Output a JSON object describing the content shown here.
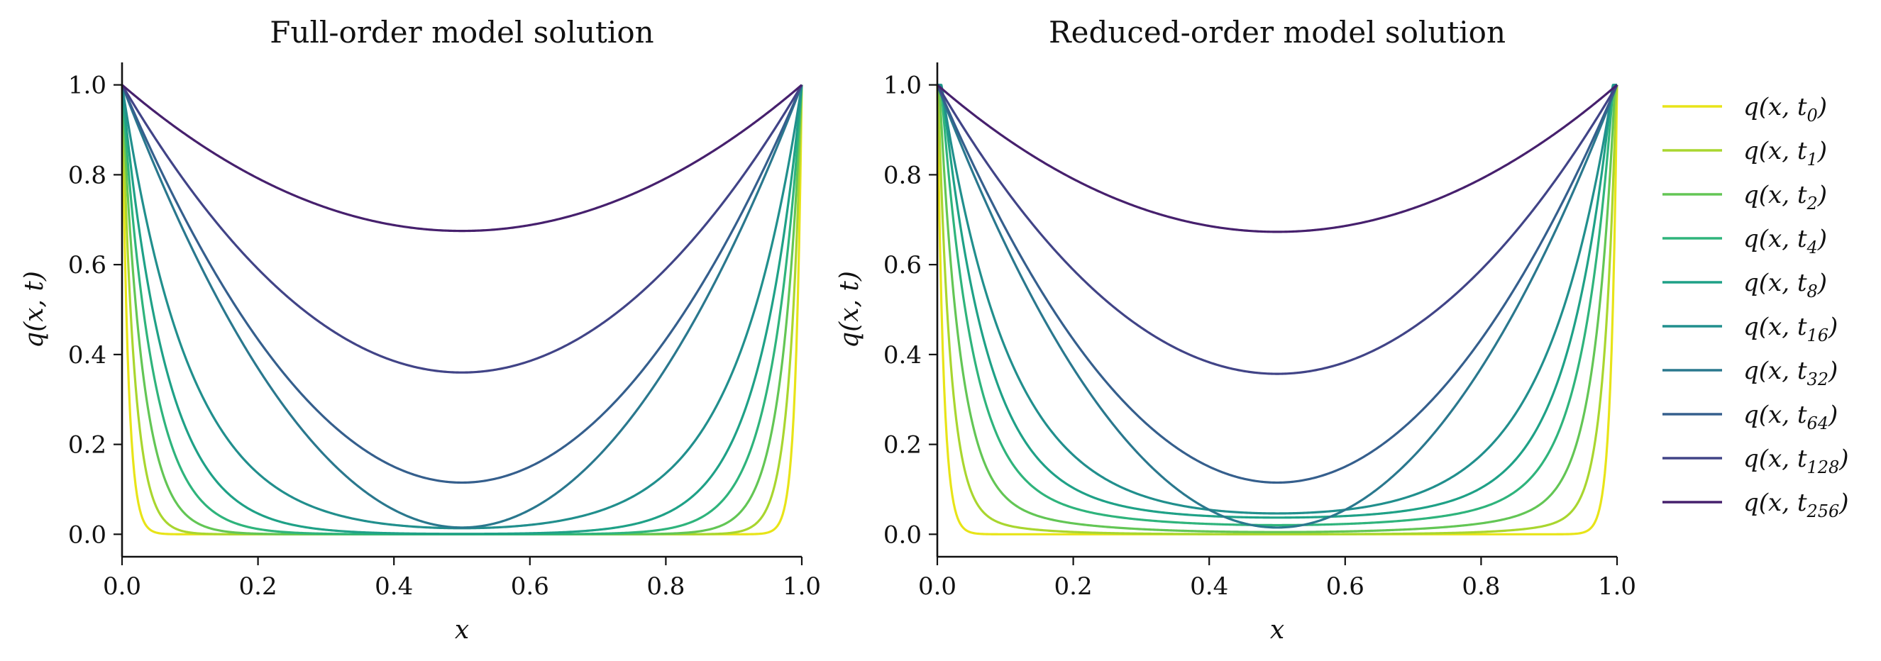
{
  "chart_data": [
    {
      "type": "line",
      "title": "Full-order model solution",
      "xlabel": "x",
      "ylabel": "q(x, t)",
      "xlim": [
        0.0,
        1.0
      ],
      "ylim": [
        -0.05,
        1.05
      ],
      "xticks": [
        "0.0",
        "0.2",
        "0.4",
        "0.6",
        "0.8",
        "1.0"
      ],
      "yticks": [
        "0.0",
        "0.2",
        "0.4",
        "0.6",
        "0.8",
        "1.0"
      ],
      "grid": false,
      "series": [
        {
          "name": "q(x, t0)",
          "min_value": 0.0,
          "boundary_value": 1.0
        },
        {
          "name": "q(x, t1)",
          "min_value": 0.0,
          "boundary_value": 1.0
        },
        {
          "name": "q(x, t2)",
          "min_value": 0.0,
          "boundary_value": 1.0
        },
        {
          "name": "q(x, t4)",
          "min_value": 0.0,
          "boundary_value": 1.0
        },
        {
          "name": "q(x, t8)",
          "min_value": 0.0,
          "boundary_value": 1.0
        },
        {
          "name": "q(x, t16)",
          "min_value": 0.0,
          "boundary_value": 1.0
        },
        {
          "name": "q(x, t32)",
          "min_value": 0.015,
          "boundary_value": 1.0
        },
        {
          "name": "q(x, t64)",
          "min_value": 0.115,
          "boundary_value": 1.0
        },
        {
          "name": "q(x, t128)",
          "min_value": 0.36,
          "boundary_value": 1.0
        },
        {
          "name": "q(x, t256)",
          "min_value": 0.675,
          "boundary_value": 1.0
        }
      ]
    },
    {
      "type": "line",
      "title": "Reduced-order model solution",
      "xlabel": "x",
      "ylabel": "q(x, t)",
      "xlim": [
        0.0,
        1.0
      ],
      "ylim": [
        -0.05,
        1.05
      ],
      "xticks": [
        "0.0",
        "0.2",
        "0.4",
        "0.6",
        "0.8",
        "1.0"
      ],
      "yticks": [
        "0.0",
        "0.2",
        "0.4",
        "0.6",
        "0.8",
        "1.0"
      ],
      "grid": false,
      "series": [
        {
          "name": "q(x, t0)",
          "min_value": 0.0,
          "boundary_value": 1.0
        },
        {
          "name": "q(x, t1)",
          "min_value": 0.0,
          "boundary_value": 1.0
        },
        {
          "name": "q(x, t2)",
          "min_value": 0.0,
          "boundary_value": 1.0
        },
        {
          "name": "q(x, t4)",
          "min_value": 0.0,
          "boundary_value": 1.0
        },
        {
          "name": "q(x, t8)",
          "min_value": 0.0,
          "boundary_value": 1.0
        },
        {
          "name": "q(x, t16)",
          "min_value": 0.0,
          "boundary_value": 1.0
        },
        {
          "name": "q(x, t32)",
          "min_value": 0.015,
          "boundary_value": 1.0
        },
        {
          "name": "q(x, t64)",
          "min_value": 0.115,
          "boundary_value": 1.0
        },
        {
          "name": "q(x, t128)",
          "min_value": 0.357,
          "boundary_value": 1.0
        },
        {
          "name": "q(x, t256)",
          "min_value": 0.673,
          "boundary_value": 1.0
        }
      ]
    }
  ],
  "legend": {
    "placement": "right",
    "entries": [
      {
        "base": "q(x, t",
        "sub": "0",
        "close": ")",
        "color": "#e8e418"
      },
      {
        "base": "q(x, t",
        "sub": "1",
        "close": ")",
        "color": "#a9d62f"
      },
      {
        "base": "q(x, t",
        "sub": "2",
        "close": ")",
        "color": "#63c655"
      },
      {
        "base": "q(x, t",
        "sub": "4",
        "close": ")",
        "color": "#2fb47c"
      },
      {
        "base": "q(x, t",
        "sub": "8",
        "close": ")",
        "color": "#1fa187"
      },
      {
        "base": "q(x, t",
        "sub": "16",
        "close": ")",
        "color": "#218f8d"
      },
      {
        "base": "q(x, t",
        "sub": "32",
        "close": ")",
        "color": "#2a788e"
      },
      {
        "base": "q(x, t",
        "sub": "64",
        "close": ")",
        "color": "#355f8d"
      },
      {
        "base": "q(x, t",
        "sub": "128",
        "close": ")",
        "color": "#414487"
      },
      {
        "base": "q(x, t",
        "sub": "256",
        "close": ")",
        "color": "#46206d"
      }
    ]
  }
}
